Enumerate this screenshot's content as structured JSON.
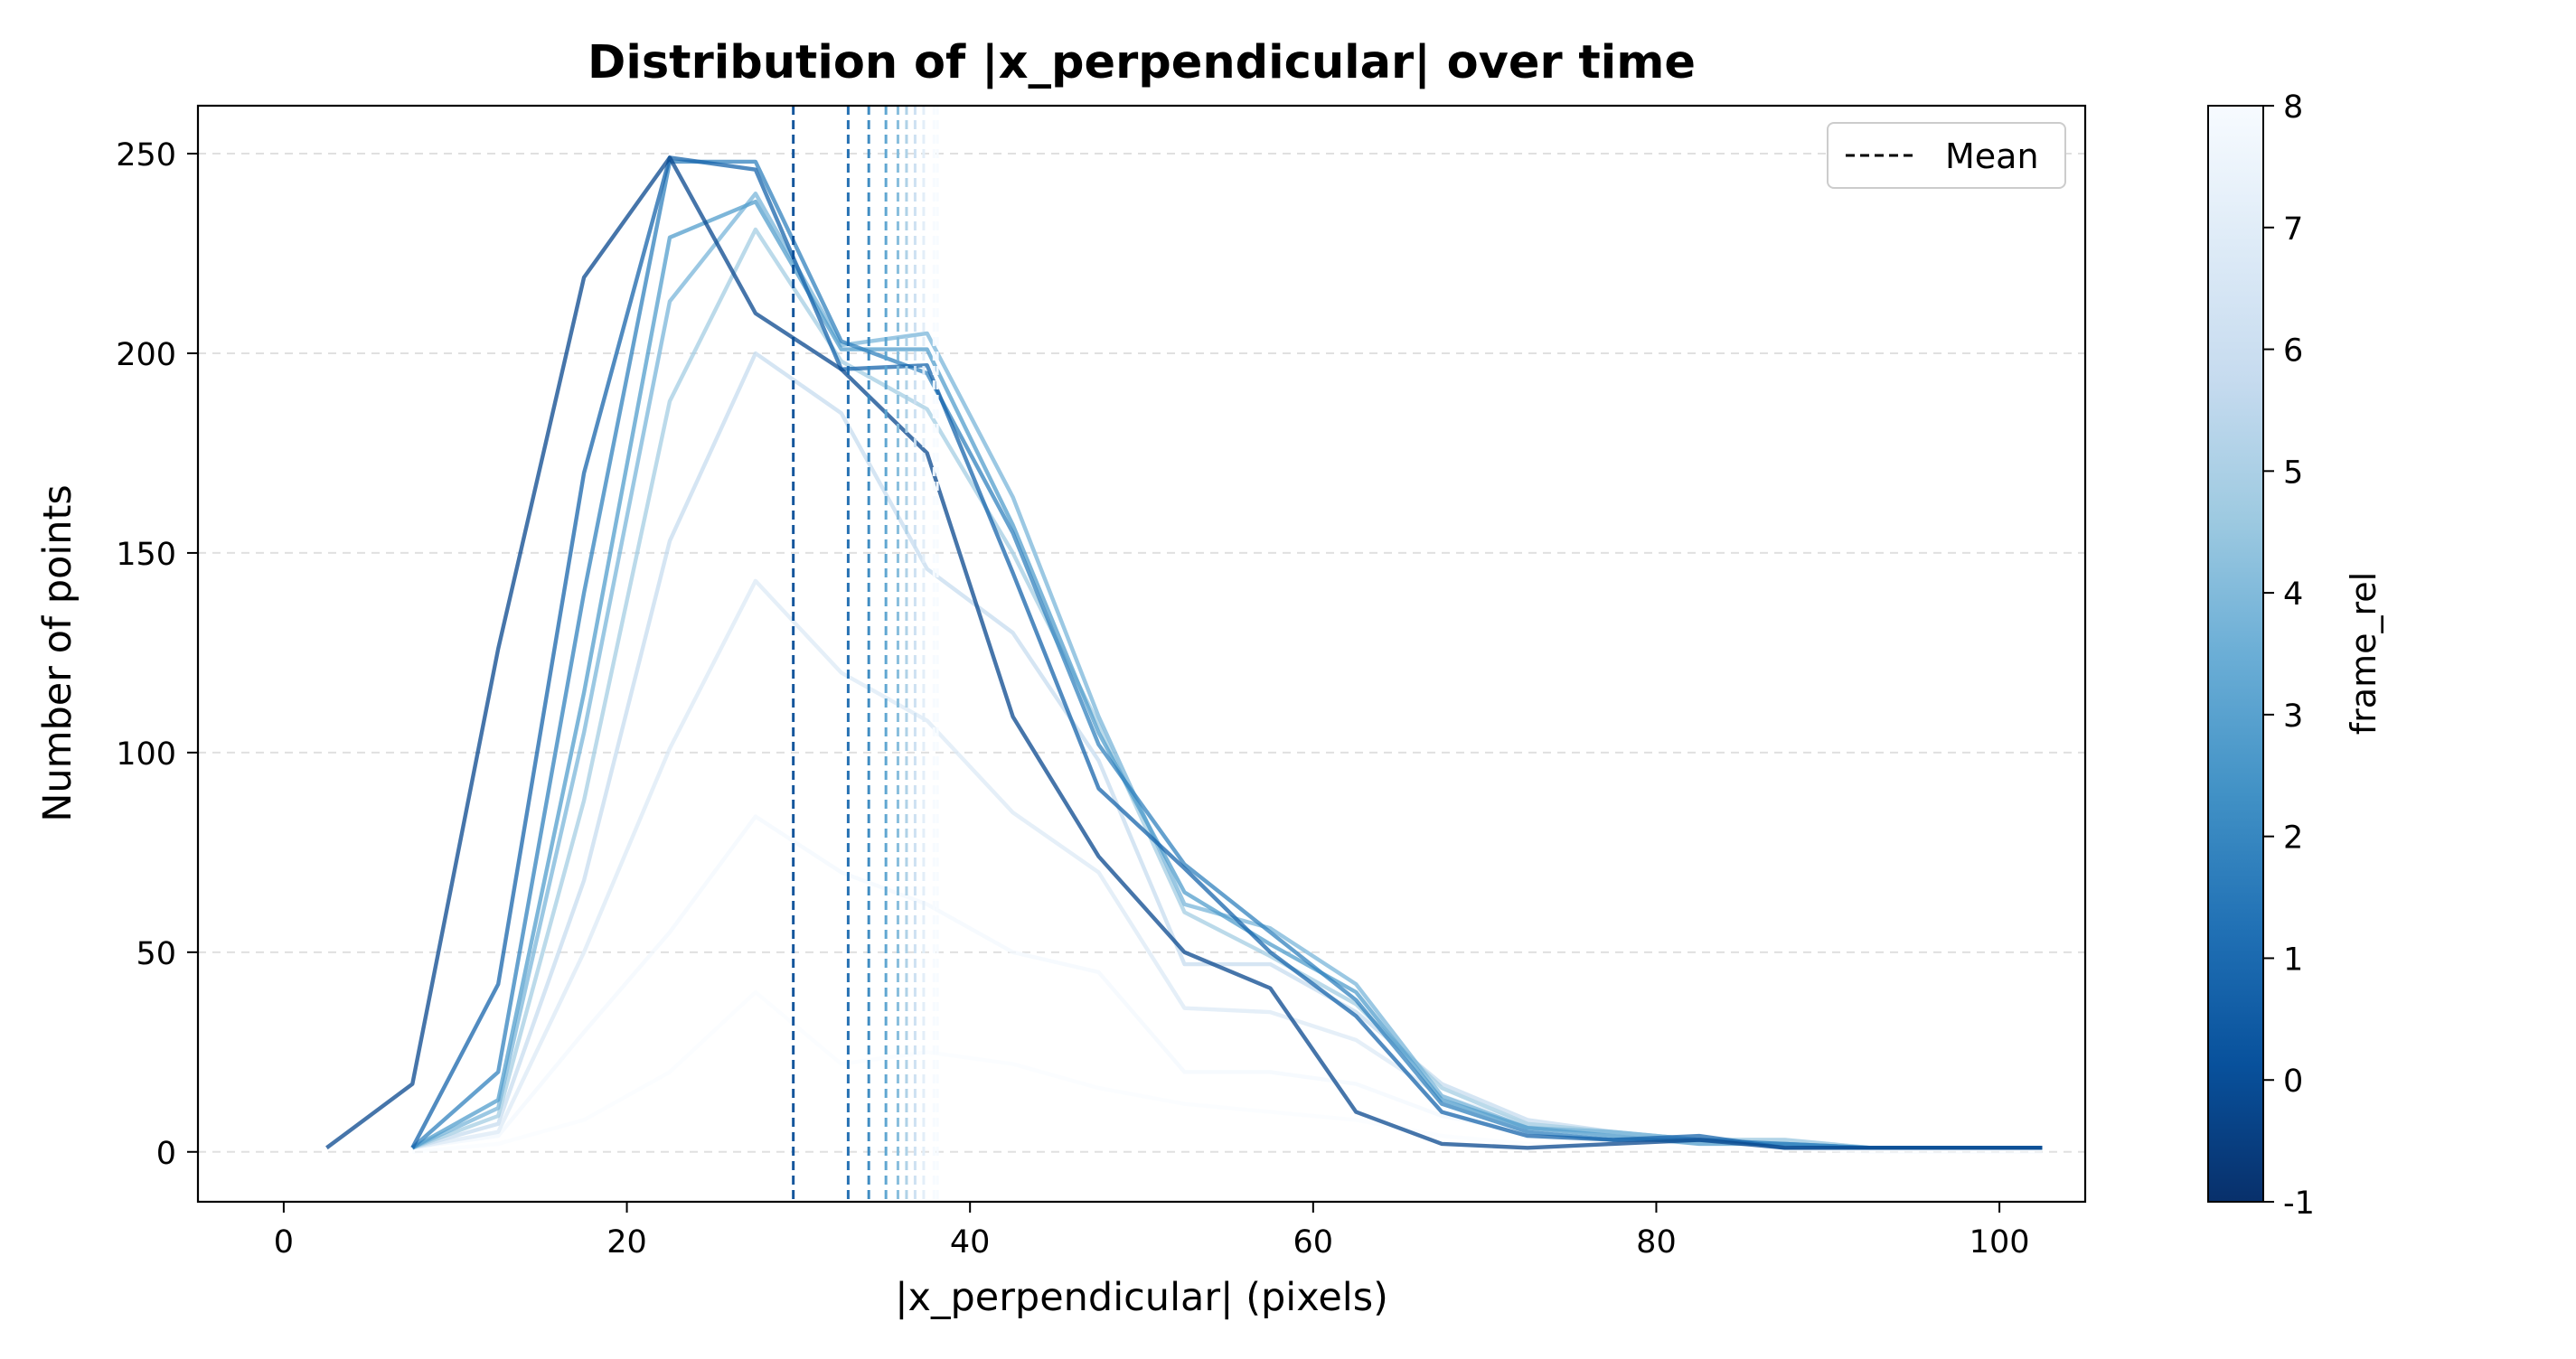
{
  "chart_data": {
    "type": "line",
    "title": "Distribution of |x_perpendicular| over time",
    "xlabel": "|x_perpendicular| (pixels)",
    "ylabel": "Number of points",
    "xlim": [
      -5,
      105
    ],
    "ylim": [
      -12.5,
      262
    ],
    "xticks": [
      0,
      20,
      40,
      60,
      80,
      100
    ],
    "yticks": [
      0,
      50,
      100,
      150,
      200,
      250
    ],
    "grid": "y-dashed",
    "legend": {
      "placement": "top-right",
      "entries": [
        {
          "label": "Mean",
          "style": "dashed",
          "color": "#000000"
        }
      ]
    },
    "colorbar": {
      "label": "frame_rel",
      "min": -1,
      "max": 8,
      "ticks": [
        -1,
        0,
        1,
        2,
        3,
        4,
        5,
        6,
        7,
        8
      ],
      "colormap": "Blues_r"
    },
    "x": [
      2.5,
      7.5,
      12.5,
      17.5,
      22.5,
      27.5,
      32.5,
      37.5,
      42.5,
      47.5,
      52.5,
      57.5,
      62.5,
      67.5,
      72.5,
      77.5,
      82.5,
      87.5,
      92.5,
      97.5,
      102.5
    ],
    "series": [
      {
        "frame_rel": 0,
        "mean": 29.7,
        "values": [
          1,
          17,
          126,
          219,
          249,
          210,
          196,
          175,
          109,
          74,
          50,
          41,
          10,
          2,
          1,
          2,
          3,
          1,
          1,
          1,
          1
        ]
      },
      {
        "frame_rel": 1,
        "mean": 32.9,
        "values": [
          null,
          1,
          42,
          170,
          249,
          246,
          196,
          197,
          145,
          91,
          71,
          50,
          34,
          10,
          4,
          3,
          4,
          1,
          1,
          1,
          1
        ]
      },
      {
        "frame_rel": 2,
        "mean": 34.1,
        "values": [
          null,
          1,
          20,
          140,
          248,
          248,
          203,
          195,
          155,
          102,
          72,
          55,
          38,
          12,
          5,
          3,
          3,
          2,
          1,
          1,
          1
        ]
      },
      {
        "frame_rel": 3,
        "mean": 35.1,
        "values": [
          null,
          1,
          13,
          115,
          229,
          238,
          201,
          201,
          157,
          105,
          65,
          52,
          40,
          13,
          6,
          4,
          2,
          2,
          1,
          1,
          1
        ]
      },
      {
        "frame_rel": 4,
        "mean": 35.8,
        "values": [
          null,
          1,
          11,
          105,
          213,
          240,
          202,
          205,
          164,
          109,
          62,
          56,
          42,
          14,
          6,
          5,
          3,
          2,
          1,
          1,
          1
        ]
      },
      {
        "frame_rel": 5,
        "mean": 36.3,
        "values": [
          null,
          1,
          9,
          88,
          188,
          231,
          198,
          186,
          150,
          107,
          60,
          49,
          37,
          16,
          7,
          5,
          3,
          3,
          1,
          1,
          1
        ]
      },
      {
        "frame_rel": 6,
        "mean": 36.8,
        "values": [
          null,
          1,
          7,
          68,
          153,
          200,
          185,
          146,
          130,
          98,
          47,
          47,
          35,
          17,
          8,
          5,
          3,
          3,
          1,
          1,
          1
        ]
      },
      {
        "frame_rel": 7,
        "mean": 37.3,
        "values": [
          null,
          1,
          5,
          50,
          101,
          143,
          120,
          108,
          85,
          70,
          36,
          35,
          28,
          14,
          7,
          4,
          3,
          2,
          1,
          1,
          1
        ]
      },
      {
        "frame_rel": 8,
        "mean": 37.9,
        "values": [
          null,
          1,
          4,
          30,
          55,
          84,
          70,
          62,
          50,
          45,
          20,
          20,
          17,
          9,
          5,
          3,
          2,
          2,
          1,
          1,
          1
        ]
      },
      {
        "frame_rel": 8,
        "mean": 38.1,
        "values": [
          null,
          0,
          2,
          8,
          20,
          40,
          22,
          25,
          22,
          16,
          12,
          10,
          8,
          4,
          2,
          1,
          1,
          1,
          0,
          0,
          0
        ]
      }
    ]
  }
}
